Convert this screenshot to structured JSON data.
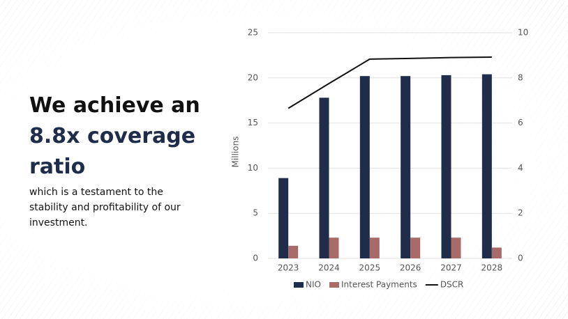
{
  "headline": [
    "We achieve an",
    "8.8x coverage",
    "ratio"
  ],
  "body": "which is a testament to the stability and profitability of our investment.",
  "chart_data": {
    "type": "bar",
    "y_label": "Millions",
    "categories": [
      "2023",
      "2024",
      "2025",
      "2026",
      "2027",
      "2028"
    ],
    "series": [
      {
        "name": "NIO",
        "color": "#1f2d4a",
        "values": [
          8.9,
          17.8,
          20.2,
          20.2,
          20.3,
          20.4
        ]
      },
      {
        "name": "Interest Payments",
        "color": "#a96a6a",
        "values": [
          1.4,
          2.3,
          2.3,
          2.3,
          2.3,
          1.2
        ]
      },
      {
        "name": "DSCR",
        "color": "#111111",
        "type": "line",
        "axis": "y2",
        "values": [
          6.65,
          7.75,
          8.83,
          8.86,
          8.9,
          8.92
        ]
      }
    ],
    "ylim": [
      0,
      25
    ],
    "yticks": [
      0,
      5,
      10,
      15,
      20,
      25
    ],
    "y2lim": [
      0,
      10
    ],
    "y2ticks": [
      0,
      2,
      4,
      6,
      8,
      10
    ],
    "grid": true,
    "legend": "bottom"
  }
}
